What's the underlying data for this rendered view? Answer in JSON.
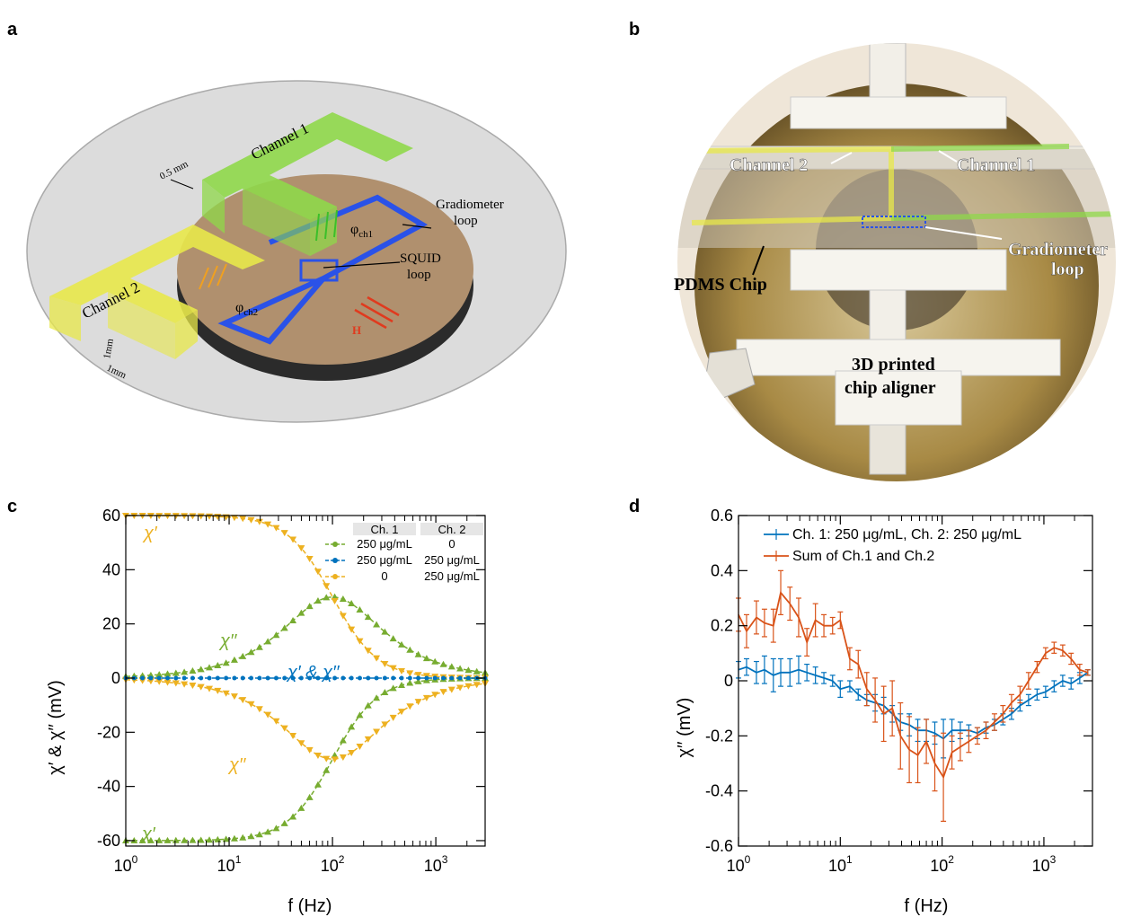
{
  "panels": {
    "a": "a",
    "b": "b",
    "c": "c",
    "d": "d"
  },
  "panel_a": {
    "channel1": "Channel 1",
    "channel2": "Channel 2",
    "gap": "0.5 mm",
    "gradiometer_1": "Gradiometer",
    "gradiometer_2": "loop",
    "squid_1": "SQUID",
    "squid_2": "loop",
    "phi_ch1": "φ",
    "phi_ch1_sub": "ch1",
    "phi_ch2": "φ",
    "phi_ch2_sub": "ch2",
    "h_field": "H",
    "dim1": "1mm",
    "dim2": "1mm",
    "colors": {
      "channel1": "#8fd84a",
      "channel2": "#e8e84a",
      "loop": "#2a52e8",
      "disk": "#b0906e",
      "arrows_green": "#3bbf2a",
      "arrows_orange": "#f0a020",
      "arrows_red": "#e03a1e"
    }
  },
  "panel_b": {
    "channel2": "Channel 2",
    "channel1": "Channel 1",
    "gradiometer_1": "Gradiometer",
    "gradiometer_2": "loop",
    "pdms": "PDMS Chip",
    "aligner_1": "3D printed",
    "aligner_2": "chip aligner"
  },
  "chart_data": [
    {
      "type": "scatter",
      "panel": "c",
      "xlabel": "f (Hz)",
      "ylabel": "χ′ & χ′′ (mV)",
      "xscale": "log",
      "xlim": [
        1,
        3000
      ],
      "ylim": [
        -62,
        60
      ],
      "xticks": [
        {
          "base": "10",
          "exp": "0",
          "value": 1
        },
        {
          "base": "10",
          "exp": "1",
          "value": 10
        },
        {
          "base": "10",
          "exp": "2",
          "value": 100
        },
        {
          "base": "10",
          "exp": "3",
          "value": 1000
        }
      ],
      "yticks": [
        -60,
        -40,
        -20,
        0,
        20,
        40,
        60
      ],
      "legend": {
        "placement": "top-right",
        "header_ch1": "Ch. 1",
        "header_ch2": "Ch. 2",
        "rows": [
          {
            "ch1": "250 μg/mL",
            "ch2": "0",
            "color": "#77ac30"
          },
          {
            "ch1": "250 μg/mL",
            "ch2": "250 μg/mL",
            "color": "#0072bd"
          },
          {
            "ch1": "0",
            "ch2": "250 μg/mL",
            "color": "#edb120"
          }
        ]
      },
      "annotations": [
        {
          "text": "χ′",
          "color": "#edb120"
        },
        {
          "text": "χ′′",
          "color": "#77ac30"
        },
        {
          "text": "χ′ & χ′′",
          "color": "#0072bd"
        },
        {
          "text": "χ′′",
          "color": "#edb120"
        },
        {
          "text": "χ′",
          "color": "#77ac30"
        }
      ],
      "model": {
        "amplitude": 60,
        "tau_freq": 100,
        "xmax": 3000,
        "points": 44
      },
      "series": [
        {
          "channel": "ch1",
          "component": "real",
          "sign": 1,
          "color": "#77ac30"
        },
        {
          "channel": "ch1",
          "component": "imag",
          "sign": 1,
          "color": "#77ac30"
        },
        {
          "channel": "ch2",
          "component": "real",
          "sign": -1,
          "color": "#edb120"
        },
        {
          "channel": "ch2",
          "component": "imag",
          "sign": -1,
          "color": "#edb120"
        },
        {
          "channel": "both",
          "component": "zero",
          "sign": 0,
          "color": "#0072bd"
        }
      ]
    },
    {
      "type": "line",
      "panel": "d",
      "xlabel": "f (Hz)",
      "ylabel": "χ′′ (mV)",
      "xscale": "log",
      "xlim": [
        1,
        3000
      ],
      "ylim": [
        -0.6,
        0.6
      ],
      "xticks": [
        {
          "base": "10",
          "exp": "0",
          "value": 1
        },
        {
          "base": "10",
          "exp": "1",
          "value": 10
        },
        {
          "base": "10",
          "exp": "2",
          "value": 100
        },
        {
          "base": "10",
          "exp": "3",
          "value": 1000
        }
      ],
      "yticks": [
        -0.6,
        -0.4,
        -0.2,
        0,
        0.2,
        0.4,
        0.6
      ],
      "legend": {
        "placement": "top-right"
      },
      "series": [
        {
          "name": "Ch. 1: 250 μg/mL, Ch. 2: 250 μg/mL",
          "color": "#0072bd",
          "x": [
            1,
            1.2,
            1.5,
            1.8,
            2.2,
            2.6,
            3.2,
            3.9,
            4.7,
            5.7,
            6.9,
            8.4,
            10,
            12.4,
            15,
            18.2,
            22,
            26.7,
            32.4,
            39,
            47.6,
            57.7,
            70,
            84.8,
            103,
            125,
            151,
            183,
            222,
            270,
            327,
            396,
            481,
            583,
            707,
            857,
            1040,
            1260,
            1530,
            1850,
            2250,
            2700
          ],
          "y": [
            0.04,
            0.05,
            0.03,
            0.04,
            0.02,
            0.03,
            0.03,
            0.04,
            0.03,
            0.02,
            0.01,
            0.0,
            -0.03,
            -0.02,
            -0.05,
            -0.07,
            -0.08,
            -0.09,
            -0.12,
            -0.15,
            -0.16,
            -0.18,
            -0.18,
            -0.19,
            -0.21,
            -0.18,
            -0.18,
            -0.18,
            -0.19,
            -0.17,
            -0.16,
            -0.14,
            -0.12,
            -0.09,
            -0.07,
            -0.05,
            -0.04,
            -0.02,
            0.0,
            -0.01,
            0.01,
            0.03
          ],
          "err": [
            0.03,
            0.03,
            0.04,
            0.05,
            0.06,
            0.05,
            0.05,
            0.05,
            0.03,
            0.03,
            0.02,
            0.02,
            0.03,
            0.02,
            0.02,
            0.02,
            0.03,
            0.03,
            0.03,
            0.03,
            0.04,
            0.04,
            0.04,
            0.04,
            0.07,
            0.04,
            0.03,
            0.02,
            0.02,
            0.02,
            0.02,
            0.02,
            0.02,
            0.02,
            0.02,
            0.02,
            0.02,
            0.02,
            0.02,
            0.02,
            0.02,
            0.01
          ]
        },
        {
          "name": "Sum of Ch.1 and Ch.2",
          "color": "#d95319",
          "x": [
            1,
            1.2,
            1.5,
            1.8,
            2.2,
            2.6,
            3.2,
            3.9,
            4.7,
            5.7,
            6.9,
            8.4,
            10,
            12.4,
            15,
            18.2,
            22,
            26.7,
            32.4,
            39,
            47.6,
            57.7,
            70,
            84.8,
            103,
            125,
            151,
            183,
            222,
            270,
            327,
            396,
            481,
            583,
            707,
            857,
            1040,
            1260,
            1530,
            1850,
            2250,
            2700
          ],
          "y": [
            0.24,
            0.18,
            0.23,
            0.21,
            0.2,
            0.32,
            0.28,
            0.23,
            0.14,
            0.22,
            0.2,
            0.2,
            0.22,
            0.08,
            0.06,
            -0.03,
            -0.07,
            -0.12,
            -0.1,
            -0.2,
            -0.25,
            -0.27,
            -0.22,
            -0.3,
            -0.35,
            -0.26,
            -0.24,
            -0.22,
            -0.2,
            -0.18,
            -0.15,
            -0.12,
            -0.08,
            -0.05,
            0.0,
            0.05,
            0.1,
            0.12,
            0.11,
            0.08,
            0.04,
            0.03
          ],
          "err": [
            0.06,
            0.06,
            0.06,
            0.05,
            0.06,
            0.08,
            0.06,
            0.07,
            0.05,
            0.06,
            0.04,
            0.03,
            0.03,
            0.04,
            0.05,
            0.06,
            0.08,
            0.1,
            0.1,
            0.12,
            0.12,
            0.1,
            0.08,
            0.1,
            0.16,
            0.06,
            0.05,
            0.04,
            0.03,
            0.03,
            0.03,
            0.03,
            0.03,
            0.03,
            0.03,
            0.02,
            0.02,
            0.02,
            0.02,
            0.02,
            0.02,
            0.01
          ]
        }
      ]
    }
  ]
}
